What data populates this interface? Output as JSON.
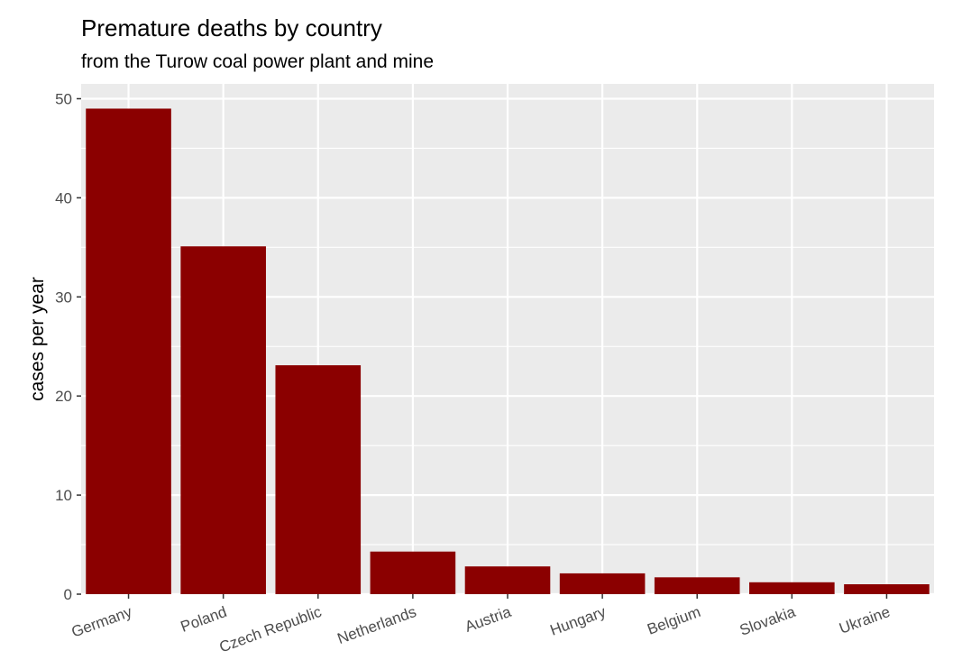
{
  "chart_data": {
    "type": "bar",
    "title": "Premature deaths by country",
    "subtitle": "from the Turow coal power plant and mine",
    "xlabel": "",
    "ylabel": "cases per year",
    "categories": [
      "Germany",
      "Poland",
      "Czech Republic",
      "Netherlands",
      "Austria",
      "Hungary",
      "Belgium",
      "Slovakia",
      "Ukraine"
    ],
    "values": [
      49,
      35.1,
      23.1,
      4.3,
      2.8,
      2.1,
      1.7,
      1.2,
      1.0
    ],
    "ylim": [
      0,
      51.5
    ],
    "yticks": [
      0,
      10,
      20,
      30,
      40,
      50
    ],
    "grid": true,
    "legend": "none",
    "colors": {
      "bar": "#8B0000",
      "panel": "#EBEBEB",
      "grid": "#FFFFFF"
    }
  }
}
